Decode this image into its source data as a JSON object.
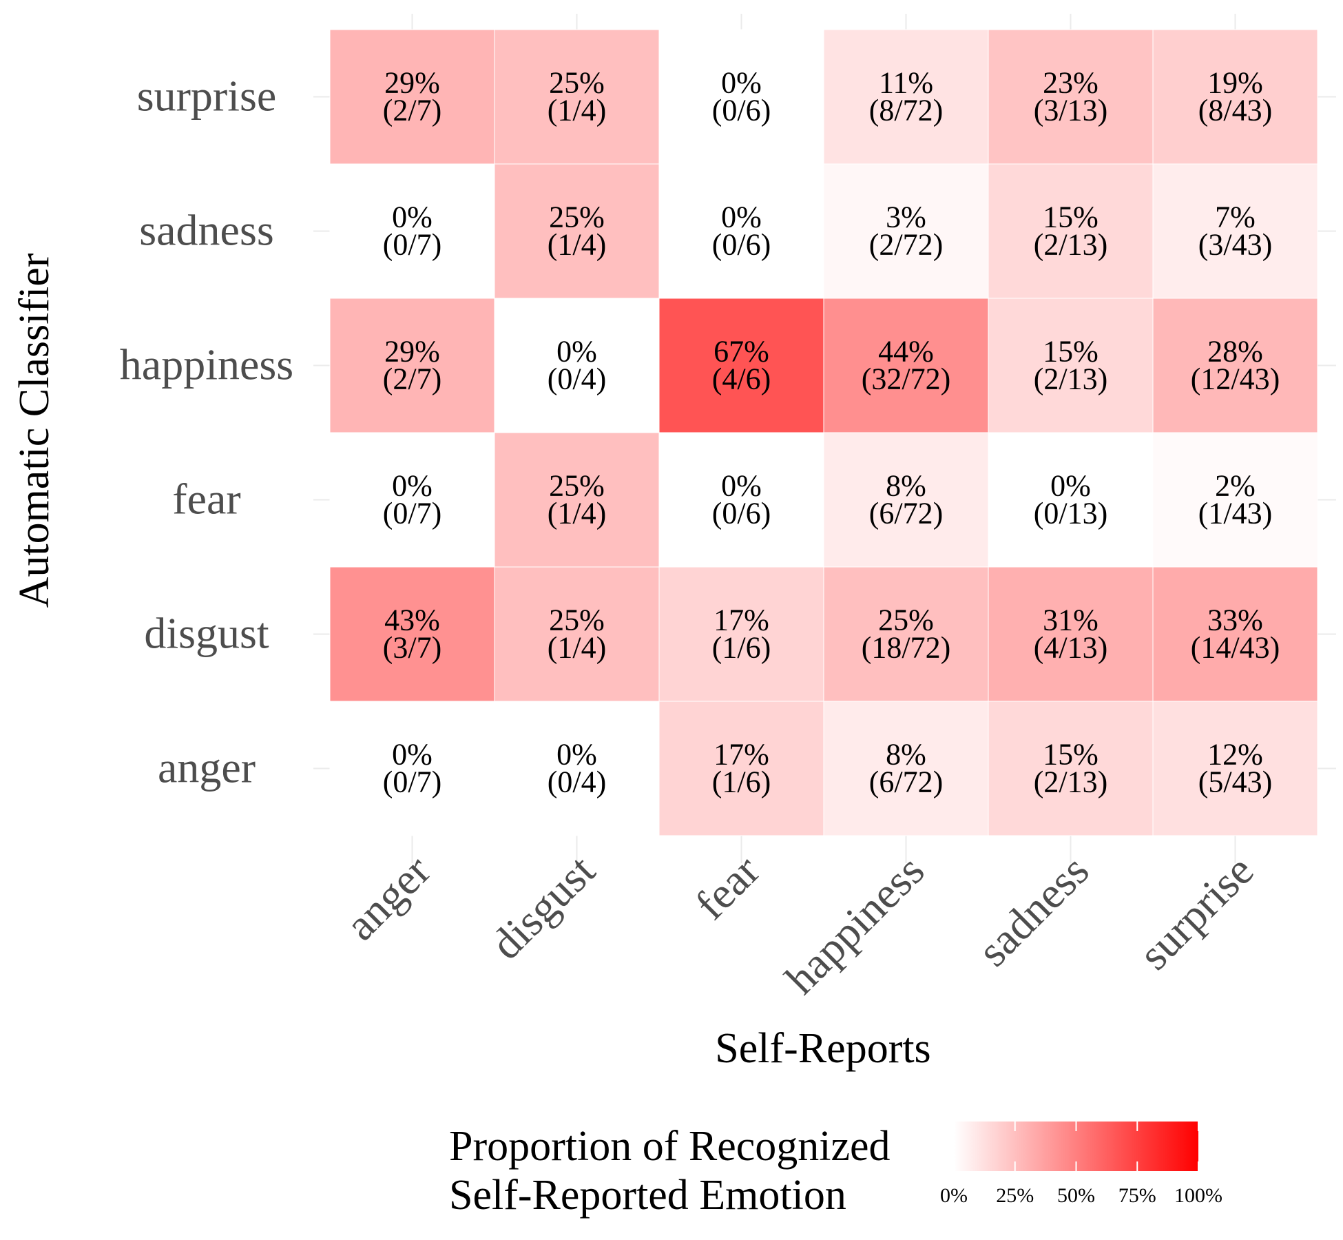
{
  "chart_data": {
    "type": "heatmap",
    "x_categories": [
      "anger",
      "disgust",
      "fear",
      "happiness",
      "sadness",
      "surprise"
    ],
    "y_categories": [
      "anger",
      "disgust",
      "fear",
      "happiness",
      "sadness",
      "surprise"
    ],
    "xlabel": "Self-Reports",
    "ylabel": "Automatic Classifier",
    "cells": [
      {
        "y": "surprise",
        "x": "anger",
        "value": 0.29,
        "label": "29%",
        "count": "(2/7)"
      },
      {
        "y": "surprise",
        "x": "disgust",
        "value": 0.25,
        "label": "25%",
        "count": "(1/4)"
      },
      {
        "y": "surprise",
        "x": "fear",
        "value": 0.0,
        "label": "0%",
        "count": "(0/6)"
      },
      {
        "y": "surprise",
        "x": "happiness",
        "value": 0.11,
        "label": "11%",
        "count": "(8/72)"
      },
      {
        "y": "surprise",
        "x": "sadness",
        "value": 0.23,
        "label": "23%",
        "count": "(3/13)"
      },
      {
        "y": "surprise",
        "x": "surprise",
        "value": 0.19,
        "label": "19%",
        "count": "(8/43)"
      },
      {
        "y": "sadness",
        "x": "anger",
        "value": 0.0,
        "label": "0%",
        "count": "(0/7)"
      },
      {
        "y": "sadness",
        "x": "disgust",
        "value": 0.25,
        "label": "25%",
        "count": "(1/4)"
      },
      {
        "y": "sadness",
        "x": "fear",
        "value": 0.0,
        "label": "0%",
        "count": "(0/6)"
      },
      {
        "y": "sadness",
        "x": "happiness",
        "value": 0.03,
        "label": "3%",
        "count": "(2/72)"
      },
      {
        "y": "sadness",
        "x": "sadness",
        "value": 0.15,
        "label": "15%",
        "count": "(2/13)"
      },
      {
        "y": "sadness",
        "x": "surprise",
        "value": 0.07,
        "label": "7%",
        "count": "(3/43)"
      },
      {
        "y": "happiness",
        "x": "anger",
        "value": 0.29,
        "label": "29%",
        "count": "(2/7)"
      },
      {
        "y": "happiness",
        "x": "disgust",
        "value": 0.0,
        "label": "0%",
        "count": "(0/4)"
      },
      {
        "y": "happiness",
        "x": "fear",
        "value": 0.67,
        "label": "67%",
        "count": "(4/6)"
      },
      {
        "y": "happiness",
        "x": "happiness",
        "value": 0.44,
        "label": "44%",
        "count": "(32/72)"
      },
      {
        "y": "happiness",
        "x": "sadness",
        "value": 0.15,
        "label": "15%",
        "count": "(2/13)"
      },
      {
        "y": "happiness",
        "x": "surprise",
        "value": 0.28,
        "label": "28%",
        "count": "(12/43)"
      },
      {
        "y": "fear",
        "x": "anger",
        "value": 0.0,
        "label": "0%",
        "count": "(0/7)"
      },
      {
        "y": "fear",
        "x": "disgust",
        "value": 0.25,
        "label": "25%",
        "count": "(1/4)"
      },
      {
        "y": "fear",
        "x": "fear",
        "value": 0.0,
        "label": "0%",
        "count": "(0/6)"
      },
      {
        "y": "fear",
        "x": "happiness",
        "value": 0.08,
        "label": "8%",
        "count": "(6/72)"
      },
      {
        "y": "fear",
        "x": "sadness",
        "value": 0.0,
        "label": "0%",
        "count": "(0/13)"
      },
      {
        "y": "fear",
        "x": "surprise",
        "value": 0.02,
        "label": "2%",
        "count": "(1/43)"
      },
      {
        "y": "disgust",
        "x": "anger",
        "value": 0.43,
        "label": "43%",
        "count": "(3/7)"
      },
      {
        "y": "disgust",
        "x": "disgust",
        "value": 0.25,
        "label": "25%",
        "count": "(1/4)"
      },
      {
        "y": "disgust",
        "x": "fear",
        "value": 0.17,
        "label": "17%",
        "count": "(1/6)"
      },
      {
        "y": "disgust",
        "x": "happiness",
        "value": 0.25,
        "label": "25%",
        "count": "(18/72)"
      },
      {
        "y": "disgust",
        "x": "sadness",
        "value": 0.31,
        "label": "31%",
        "count": "(4/13)"
      },
      {
        "y": "disgust",
        "x": "surprise",
        "value": 0.33,
        "label": "33%",
        "count": "(14/43)"
      },
      {
        "y": "anger",
        "x": "anger",
        "value": 0.0,
        "label": "0%",
        "count": "(0/7)"
      },
      {
        "y": "anger",
        "x": "disgust",
        "value": 0.0,
        "label": "0%",
        "count": "(0/4)"
      },
      {
        "y": "anger",
        "x": "fear",
        "value": 0.17,
        "label": "17%",
        "count": "(1/6)"
      },
      {
        "y": "anger",
        "x": "happiness",
        "value": 0.08,
        "label": "8%",
        "count": "(6/72)"
      },
      {
        "y": "anger",
        "x": "sadness",
        "value": 0.15,
        "label": "15%",
        "count": "(2/13)"
      },
      {
        "y": "anger",
        "x": "surprise",
        "value": 0.12,
        "label": "12%",
        "count": "(5/43)"
      }
    ],
    "color_scale": {
      "low": "#ffffff",
      "high": "#ff0000",
      "domain": [
        0,
        1
      ]
    },
    "legend": {
      "title_lines": [
        "Proportion of Recognized",
        "Self-Reported Emotion"
      ],
      "ticks": [
        {
          "value": 0,
          "label": "0%"
        },
        {
          "value": 0.25,
          "label": "25%"
        },
        {
          "value": 0.5,
          "label": "50%"
        },
        {
          "value": 0.75,
          "label": "75%"
        },
        {
          "value": 1.0,
          "label": "100%"
        }
      ],
      "position": "bottom"
    },
    "grid": true
  }
}
